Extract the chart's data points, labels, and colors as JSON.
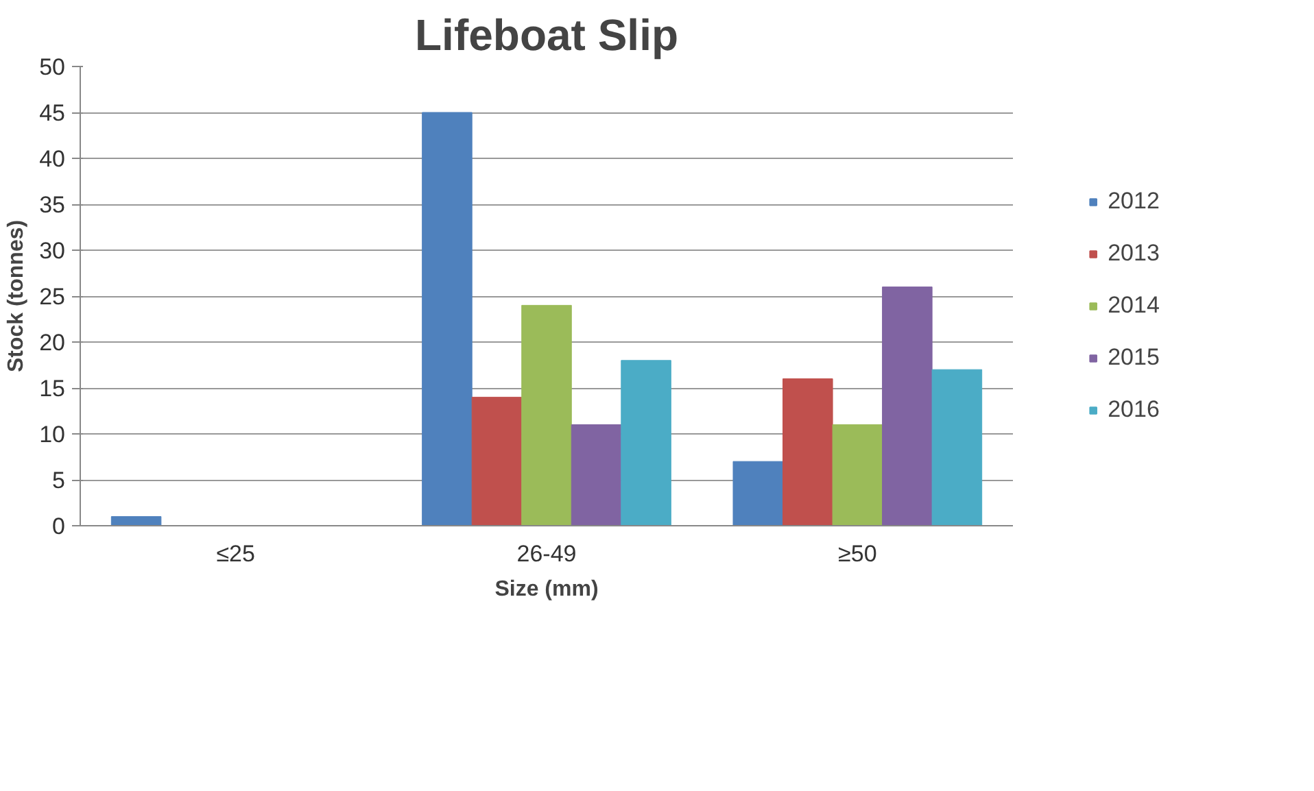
{
  "chart_data": {
    "type": "bar",
    "title": "Lifeboat Slip",
    "xlabel": "Size (mm)",
    "ylabel": "Stock (tonnes)",
    "categories": [
      "≤25",
      "26-49",
      "≥50"
    ],
    "series": [
      {
        "name": "2012",
        "color": "#4f81bd",
        "values": [
          1,
          45,
          7
        ]
      },
      {
        "name": "2013",
        "color": "#c0504d",
        "values": [
          0,
          14,
          16
        ]
      },
      {
        "name": "2014",
        "color": "#9bbb59",
        "values": [
          0,
          24,
          11
        ]
      },
      {
        "name": "2015",
        "color": "#8064a2",
        "values": [
          0,
          11,
          26
        ]
      },
      {
        "name": "2016",
        "color": "#4bacc6",
        "values": [
          0,
          18,
          17
        ]
      }
    ],
    "ylim": [
      0,
      50
    ],
    "yticks": [
      0,
      5,
      10,
      15,
      20,
      25,
      30,
      35,
      40,
      45,
      50
    ],
    "grid": "y",
    "legend": "right"
  }
}
